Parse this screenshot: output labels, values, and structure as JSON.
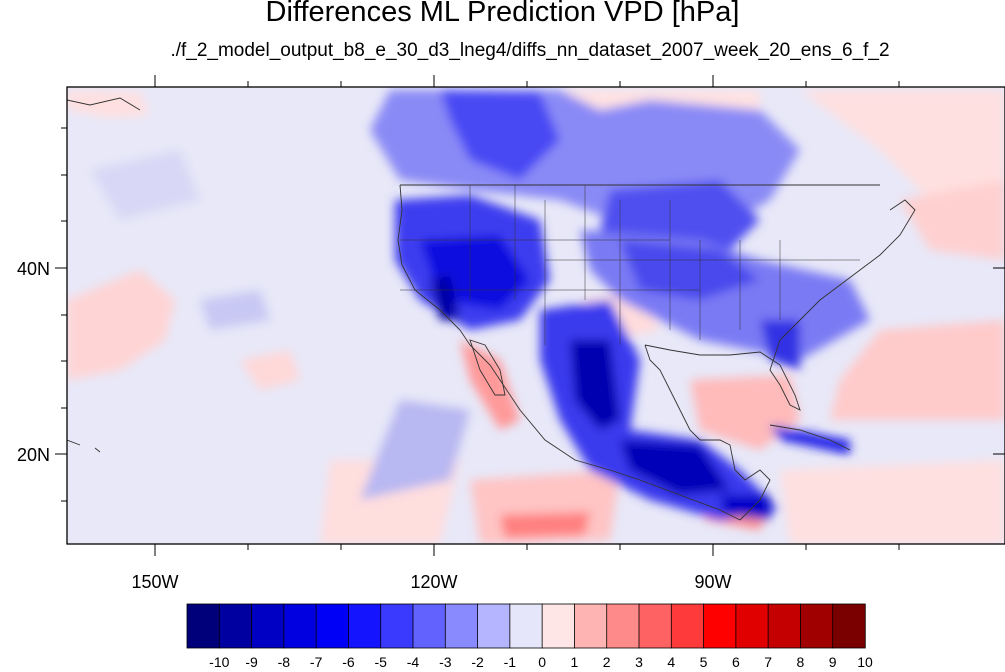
{
  "title": "Differences ML Prediction VPD [hPa]",
  "subtitle": "./f_2_model_output_b8_e_30_d3_lneg4/diffs_nn_dataset_2007_week_20_ens_6_f_2",
  "axes": {
    "lon_labels": [
      "150W",
      "120W",
      "90W"
    ],
    "lat_labels": [
      "40N",
      "20N"
    ]
  },
  "colorbar": {
    "labels": [
      "-10",
      "-9",
      "-8",
      "-7",
      "-6",
      "-5",
      "-4",
      "-3",
      "-2",
      "-1",
      "0",
      "1",
      "2",
      "3",
      "4",
      "5",
      "6",
      "7",
      "8",
      "9",
      "10"
    ],
    "colors": [
      "#00007a",
      "#0000a0",
      "#0000c4",
      "#0000e0",
      "#0000f6",
      "#1414ff",
      "#3a3aff",
      "#6262ff",
      "#8a8aff",
      "#b4b4ff",
      "#e6e6fb",
      "#ffe6e6",
      "#ffb4b4",
      "#ff8a8a",
      "#ff6262",
      "#ff3a3a",
      "#ff0000",
      "#e00000",
      "#c40000",
      "#a00000",
      "#7a0000"
    ]
  },
  "legend": {
    "negative_color": "#0000f0",
    "positive_color": "#ff0000",
    "neutral_color": "#e8e8f8"
  }
}
